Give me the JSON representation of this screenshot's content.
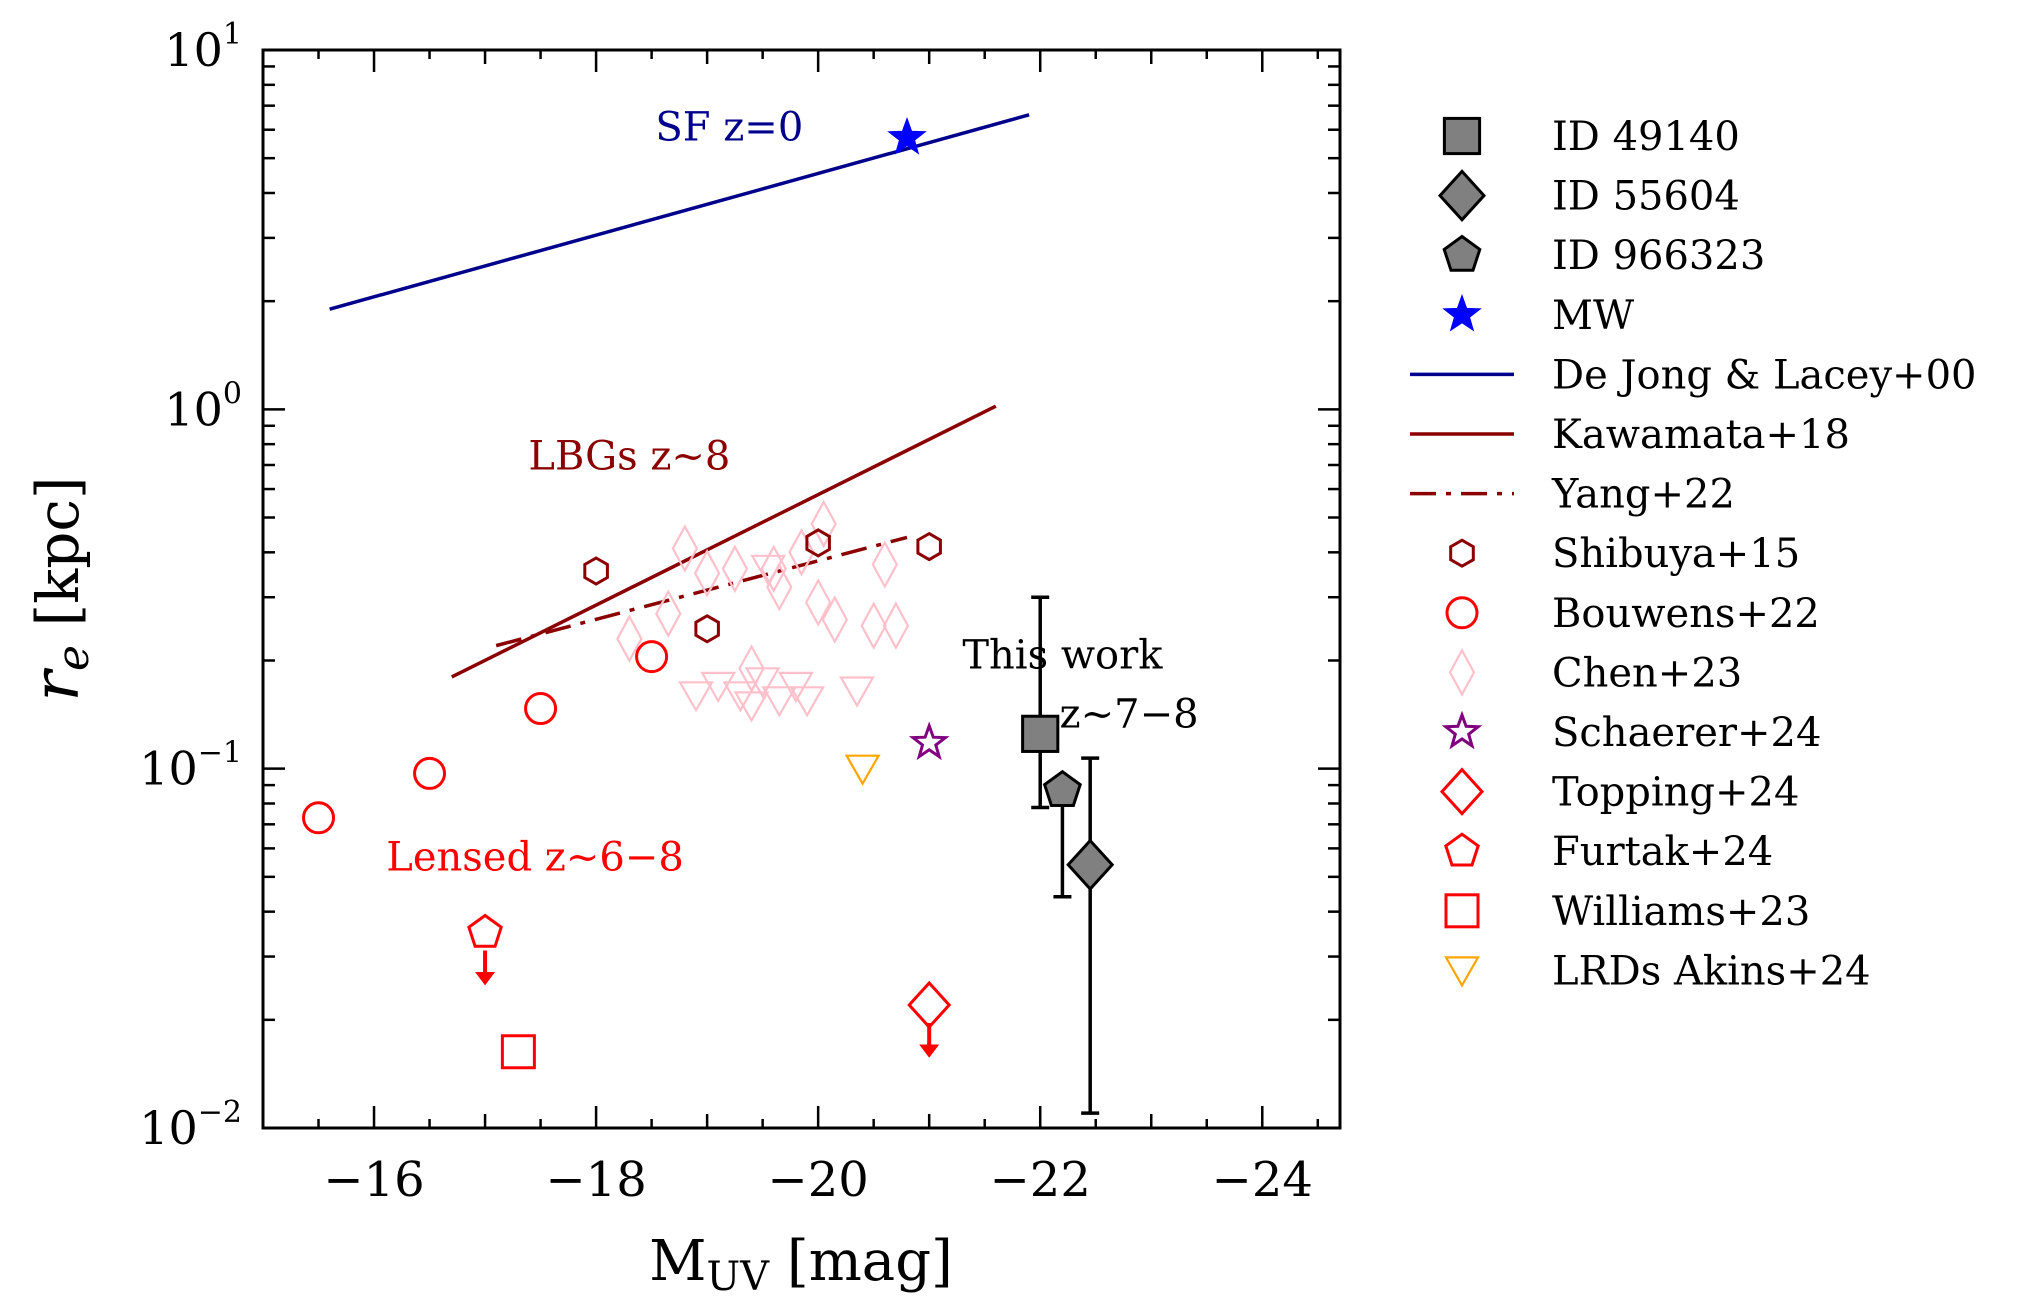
{
  "chart_data": {
    "type": "scatter",
    "xlabel": "M",
    "xlabel_sub": "UV",
    "xlabel_unit": "[mag]",
    "ylabel_main": "r",
    "ylabel_sub": "e",
    "ylabel_unit": "[kpc]",
    "xlim": [
      -15.0,
      -24.7
    ],
    "ylim": [
      0.01,
      10
    ],
    "yscale": "log",
    "x_ticks": [
      -16,
      -18,
      -20,
      -22,
      -24
    ],
    "x_tick_labels": [
      "−16",
      "−18",
      "−20",
      "−22",
      "−24"
    ],
    "y_ticks": [
      {
        "value": 10,
        "base": "10",
        "exp": "1"
      },
      {
        "value": 1,
        "base": "10",
        "exp": "0"
      },
      {
        "value": 0.1,
        "base": "10",
        "exp": "−1"
      },
      {
        "value": 0.01,
        "base": "10",
        "exp": "−2"
      }
    ],
    "colors": {
      "this_work": "#808080",
      "mw": "#0000ff",
      "dejong": "#00008b",
      "kawamata": "#8b0000",
      "shibuya": "#8b0000",
      "bouwens": "#ff0000",
      "chen": "#ffc0cb",
      "schaerer": "#800080",
      "akins": "#ffa500"
    },
    "annotations": [
      {
        "id": "sf",
        "text": "SF z=0",
        "color": "#00008b",
        "x": -19.2,
        "y": 5.6
      },
      {
        "id": "lbg",
        "text": "LBGs z~8",
        "color": "#8b0000",
        "x": -18.3,
        "y": 0.68
      },
      {
        "id": "lensed",
        "text": "Lensed z~6−8",
        "color": "#ff0000",
        "x": -17.45,
        "y": 0.052
      },
      {
        "id": "tw1",
        "text": "This work",
        "color": "#000000",
        "x": -22.2,
        "y": 0.19
      },
      {
        "id": "tw2",
        "text": "z~7−8",
        "color": "#000000",
        "x": -22.8,
        "y": 0.13
      }
    ],
    "series": [
      {
        "name": "ID 49140",
        "marker": "square",
        "kind": "this_work",
        "points": [
          {
            "x": -22.0,
            "y": 0.125,
            "ylo": 0.078,
            "yhi": 0.3
          }
        ]
      },
      {
        "name": "ID 55604",
        "marker": "diamond",
        "kind": "this_work",
        "points": [
          {
            "x": -22.45,
            "y": 0.054,
            "ylo": 0.011,
            "yhi": 0.107
          }
        ]
      },
      {
        "name": "ID 966323",
        "marker": "pentagon",
        "kind": "this_work",
        "points": [
          {
            "x": -22.2,
            "y": 0.087,
            "ylo": 0.044,
            "yhi": 0.087
          }
        ]
      },
      {
        "name": "MW",
        "marker": "star",
        "kind": "filled",
        "color": "#0000ff",
        "points": [
          {
            "x": -20.8,
            "y": 5.7
          }
        ]
      },
      {
        "name": "De Jong & Lacey+00",
        "marker": "line",
        "color": "#00008b",
        "dash": "solid",
        "points": [
          {
            "x": -15.6,
            "y": 1.9
          },
          {
            "x": -21.9,
            "y": 6.6
          }
        ]
      },
      {
        "name": "Kawamata+18",
        "marker": "line",
        "color": "#8b0000",
        "dash": "solid",
        "points": [
          {
            "x": -16.7,
            "y": 0.18
          },
          {
            "x": -21.6,
            "y": 1.02
          }
        ]
      },
      {
        "name": "Yang+22",
        "marker": "line",
        "color": "#8b0000",
        "dash": "dashdot",
        "points": [
          {
            "x": -17.1,
            "y": 0.22
          },
          {
            "x": -20.8,
            "y": 0.44
          }
        ]
      },
      {
        "name": "Shibuya+15",
        "marker": "hexagon",
        "color": "#8b0000",
        "points": [
          {
            "x": -18.0,
            "y": 0.355
          },
          {
            "x": -19.0,
            "y": 0.245
          },
          {
            "x": -20.0,
            "y": 0.425
          },
          {
            "x": -21.0,
            "y": 0.415
          }
        ]
      },
      {
        "name": "Bouwens+22",
        "marker": "circle",
        "color": "#ff0000",
        "points": [
          {
            "x": -15.5,
            "y": 0.073
          },
          {
            "x": -16.5,
            "y": 0.097
          },
          {
            "x": -17.5,
            "y": 0.147
          },
          {
            "x": -18.5,
            "y": 0.205
          }
        ]
      },
      {
        "name": "Chen+23",
        "marker": "diamond_thin",
        "color": "#ffc0cb",
        "points": [
          {
            "x": -18.3,
            "y": 0.23
          },
          {
            "x": -18.65,
            "y": 0.27
          },
          {
            "x": -18.8,
            "y": 0.41
          },
          {
            "x": -19.0,
            "y": 0.35
          },
          {
            "x": -19.25,
            "y": 0.36
          },
          {
            "x": -19.4,
            "y": 0.19
          },
          {
            "x": -19.6,
            "y": 0.36
          },
          {
            "x": -19.65,
            "y": 0.32
          },
          {
            "x": -19.85,
            "y": 0.4
          },
          {
            "x": -20.0,
            "y": 0.29
          },
          {
            "x": -20.05,
            "y": 0.48
          },
          {
            "x": -20.15,
            "y": 0.26
          },
          {
            "x": -20.5,
            "y": 0.25
          },
          {
            "x": -20.6,
            "y": 0.37
          },
          {
            "x": -20.7,
            "y": 0.25
          }
        ]
      },
      {
        "name": "Chen+23 triangles",
        "legend": false,
        "marker": "triangle_down",
        "color": "#ffc0cb",
        "points": [
          {
            "x": -18.9,
            "y": 0.16
          },
          {
            "x": -19.1,
            "y": 0.17
          },
          {
            "x": -19.3,
            "y": 0.16
          },
          {
            "x": -19.4,
            "y": 0.15
          },
          {
            "x": -19.5,
            "y": 0.175
          },
          {
            "x": -19.55,
            "y": 0.36
          },
          {
            "x": -19.65,
            "y": 0.155
          },
          {
            "x": -19.8,
            "y": 0.17
          },
          {
            "x": -19.9,
            "y": 0.155
          },
          {
            "x": -20.35,
            "y": 0.165
          }
        ]
      },
      {
        "name": "Schaerer+24",
        "marker": "star",
        "kind": "open",
        "color": "#800080",
        "points": [
          {
            "x": -21.0,
            "y": 0.118
          }
        ]
      },
      {
        "name": "Topping+24",
        "marker": "diamond",
        "color": "#ff0000",
        "upper_limit": true,
        "points": [
          {
            "x": -21.0,
            "y": 0.022
          }
        ]
      },
      {
        "name": "Furtak+24",
        "marker": "pentagon",
        "color": "#ff0000",
        "upper_limit": true,
        "points": [
          {
            "x": -17.0,
            "y": 0.035
          }
        ]
      },
      {
        "name": "Williams+23",
        "marker": "square",
        "color": "#ff0000",
        "points": [
          {
            "x": -17.3,
            "y": 0.0163
          }
        ]
      },
      {
        "name": "LRDs Akins+24",
        "marker": "triangle_down",
        "color": "#ffa500",
        "points": [
          {
            "x": -20.4,
            "y": 0.1
          }
        ]
      }
    ]
  }
}
